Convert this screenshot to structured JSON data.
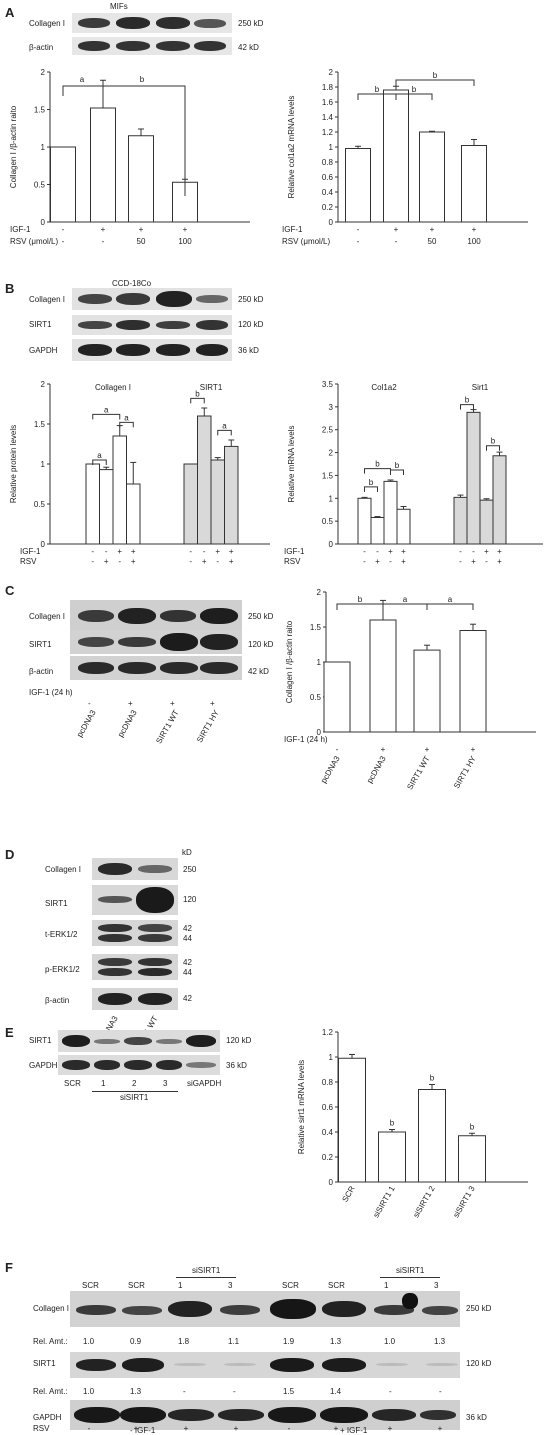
{
  "panel_labels": {
    "A": "A",
    "B": "B",
    "C": "C",
    "D": "D",
    "E": "E",
    "F": "F"
  },
  "blot_a": {
    "title": "MIFs",
    "rows": [
      {
        "name": "Collagen I",
        "kd": "250 kD"
      },
      {
        "name": "β-actin",
        "kd": "42 kD"
      }
    ]
  },
  "blot_b": {
    "title": "CCD-18Co",
    "rows": [
      {
        "name": "Collagen I",
        "kd": "250 kD"
      },
      {
        "name": "SIRT1",
        "kd": "120 kD"
      },
      {
        "name": "GAPDH",
        "kd": "36 kD"
      }
    ]
  },
  "blot_c": {
    "rows": [
      {
        "name": "Collagen I",
        "kd": "250 kD"
      },
      {
        "name": "SIRT1",
        "kd": "120 kD"
      },
      {
        "name": "β-actin",
        "kd": "42 kD"
      }
    ],
    "treat_label": "IGF-1 (24 h)",
    "treat": [
      "-",
      "+",
      "+",
      "+"
    ],
    "lanes": [
      "pcDNA3",
      "pcDNA3",
      "SIRT1 WT",
      "SIRT1 HY"
    ]
  },
  "blot_d": {
    "unit": "kD",
    "rows": [
      {
        "name": "Collagen I",
        "kd": "250"
      },
      {
        "name": "SIRT1",
        "kd": "120"
      },
      {
        "name": "t-ERK1/2",
        "kd": "42",
        "kd2": "44"
      },
      {
        "name": "p-ERK1/2",
        "kd": "42",
        "kd2": "44"
      },
      {
        "name": "β-actin",
        "kd": "42"
      }
    ],
    "lanes": [
      "pcDNA3",
      "SIRT1 WT"
    ]
  },
  "blot_e": {
    "rows": [
      {
        "name": "SIRT1",
        "kd": "120 kD"
      },
      {
        "name": "GAPDH",
        "kd": "36 kD"
      }
    ],
    "lanes": [
      "SCR",
      "1",
      "2",
      "3",
      "siGAPDH"
    ],
    "group": "siSIRT1"
  },
  "blot_f": {
    "lanes": [
      "SCR",
      "SCR",
      "1",
      "3",
      "SCR",
      "SCR",
      "1",
      "3"
    ],
    "group": "siSIRT1",
    "rows": [
      {
        "name": "Collagen I",
        "kd": "250 kD"
      },
      {
        "name": "SIRT1",
        "kd": "120 kD"
      },
      {
        "name": "GAPDH",
        "kd": "36 kD"
      }
    ],
    "rel_label": "Rel. Amt.:",
    "rel_collagen": [
      "1.0",
      "0.9",
      "1.8",
      "1.1",
      "1.9",
      "1.3",
      "1.0",
      "1.3"
    ],
    "rel_sirt1": [
      "1.0",
      "1.3",
      "-",
      "-",
      "1.5",
      "1.4",
      "-",
      "-"
    ],
    "rsv_label": "RSV",
    "rsv": [
      "-",
      "+",
      "+",
      "+",
      "-",
      "+",
      "+",
      "+"
    ],
    "igf_minus": "- IGF-1",
    "igf_plus": "+ IGF-1"
  },
  "chart_data": [
    {
      "id": "A1",
      "type": "bar",
      "ylabel": "Collagen I /β-actin raito",
      "ylim": [
        0,
        2
      ],
      "yticks": [
        "0",
        "0.5",
        "1",
        "1.5",
        "2"
      ],
      "values": [
        1.0,
        1.52,
        1.15,
        0.53
      ],
      "errors": [
        0,
        0.37,
        0.09,
        0.04
      ],
      "cond_rows": [
        {
          "label": "IGF-1",
          "vals": [
            "-",
            "+",
            "+",
            "+"
          ]
        },
        {
          "label": "RSV (μmol/L)",
          "vals": [
            "-",
            "-",
            "50",
            "100"
          ]
        }
      ],
      "sig": [
        {
          "text": "a"
        },
        {
          "text": "b"
        }
      ]
    },
    {
      "id": "A2",
      "type": "bar",
      "ylabel": "Relative col1a2 mRNA levels",
      "ylim": [
        0,
        2
      ],
      "yticks": [
        "0",
        "0.2",
        "0.4",
        "0.6",
        "0.8",
        "1",
        "1.2",
        "1.4",
        "1.6",
        "1.8",
        "2"
      ],
      "values": [
        0.98,
        1.76,
        1.2,
        1.02
      ],
      "errors": [
        0.03,
        0.05,
        0.01,
        0.08
      ],
      "cond_rows": [
        {
          "label": "IGF-1",
          "vals": [
            "-",
            "+",
            "+",
            "+"
          ]
        },
        {
          "label": "RSV (μmol/L)",
          "vals": [
            "-",
            "-",
            "50",
            "100"
          ]
        }
      ],
      "sig": [
        {
          "text": "b"
        },
        {
          "text": "b"
        },
        {
          "text": "b"
        }
      ]
    },
    {
      "id": "B1",
      "type": "bar",
      "ylabel": "Relative protein levels",
      "ylim": [
        0,
        2
      ],
      "yticks": [
        "0",
        "0.5",
        "1",
        "1.5",
        "2"
      ],
      "groups": [
        {
          "name": "Collagen I",
          "fill": "#ffffff",
          "values": [
            1.0,
            0.93,
            1.35,
            0.75
          ],
          "errors": [
            0,
            0.03,
            0.13,
            0.27
          ]
        },
        {
          "name": "SIRT1",
          "fill": "#d9d9d9",
          "values": [
            1.0,
            1.6,
            1.05,
            1.22
          ],
          "errors": [
            0,
            0.1,
            0.03,
            0.08
          ]
        }
      ],
      "cond_rows": [
        {
          "label": "IGF-1",
          "vals": [
            "-",
            "-",
            "+",
            "+"
          ]
        },
        {
          "label": "RSV",
          "vals": [
            "-",
            "+",
            "-",
            "+"
          ]
        }
      ],
      "sig": [
        {
          "text": "a"
        },
        {
          "text": "a"
        },
        {
          "text": "a"
        },
        {
          "text": "b"
        },
        {
          "text": "a"
        }
      ]
    },
    {
      "id": "B2",
      "type": "bar",
      "ylabel": "Relative mRNA levels",
      "ylim": [
        0,
        3.5
      ],
      "yticks": [
        "0",
        "0.5",
        "1",
        "1.5",
        "2",
        "2.5",
        "3",
        "3.5"
      ],
      "groups": [
        {
          "name": "Col1a2",
          "fill": "#ffffff",
          "values": [
            1.0,
            0.58,
            1.37,
            0.76
          ],
          "errors": [
            0.02,
            0.02,
            0.03,
            0.06
          ]
        },
        {
          "name": "Sirt1",
          "fill": "#d9d9d9",
          "values": [
            1.02,
            2.88,
            0.96,
            1.93
          ],
          "errors": [
            0.05,
            0.06,
            0.03,
            0.08
          ]
        }
      ],
      "cond_rows": [
        {
          "label": "IGF-1",
          "vals": [
            "-",
            "-",
            "+",
            "+"
          ]
        },
        {
          "label": "RSV",
          "vals": [
            "-",
            "+",
            "-",
            "+"
          ]
        }
      ],
      "sig": [
        {
          "text": "b"
        },
        {
          "text": "b"
        },
        {
          "text": "b"
        },
        {
          "text": "b"
        },
        {
          "text": "b"
        }
      ]
    },
    {
      "id": "C1",
      "type": "bar",
      "ylabel": "Collagen I /β-actin raito",
      "ylim": [
        0,
        2
      ],
      "yticks": [
        "0",
        "0.5",
        "1",
        "1.5",
        "2"
      ],
      "values": [
        1.0,
        1.6,
        1.17,
        1.45
      ],
      "errors": [
        0,
        0.28,
        0.07,
        0.09
      ],
      "cond_label": "IGF-1 (24 h)",
      "cond_vals": [
        "-",
        "+",
        "+",
        "+"
      ],
      "categories": [
        "pcDNA3",
        "pcDNA3",
        "SIRT1 WT",
        "SIRT1 HY"
      ],
      "sig": [
        {
          "text": "b"
        },
        {
          "text": "a"
        },
        {
          "text": "a"
        }
      ]
    },
    {
      "id": "E1",
      "type": "bar",
      "ylabel": "Relative sirt1 mRNA levels",
      "ylim": [
        0,
        1.2
      ],
      "yticks": [
        "0",
        "0.2",
        "0.4",
        "0.6",
        "0.8",
        "1",
        "1.2"
      ],
      "values": [
        0.99,
        0.4,
        0.74,
        0.37
      ],
      "errors": [
        0.03,
        0.02,
        0.04,
        0.02
      ],
      "categories": [
        "SCR",
        "siSIRT1 1",
        "siSIRT1 2",
        "siSIRT1 3"
      ],
      "sig": [
        {
          "text": "b"
        },
        {
          "text": "b"
        },
        {
          "text": "b"
        }
      ]
    }
  ]
}
